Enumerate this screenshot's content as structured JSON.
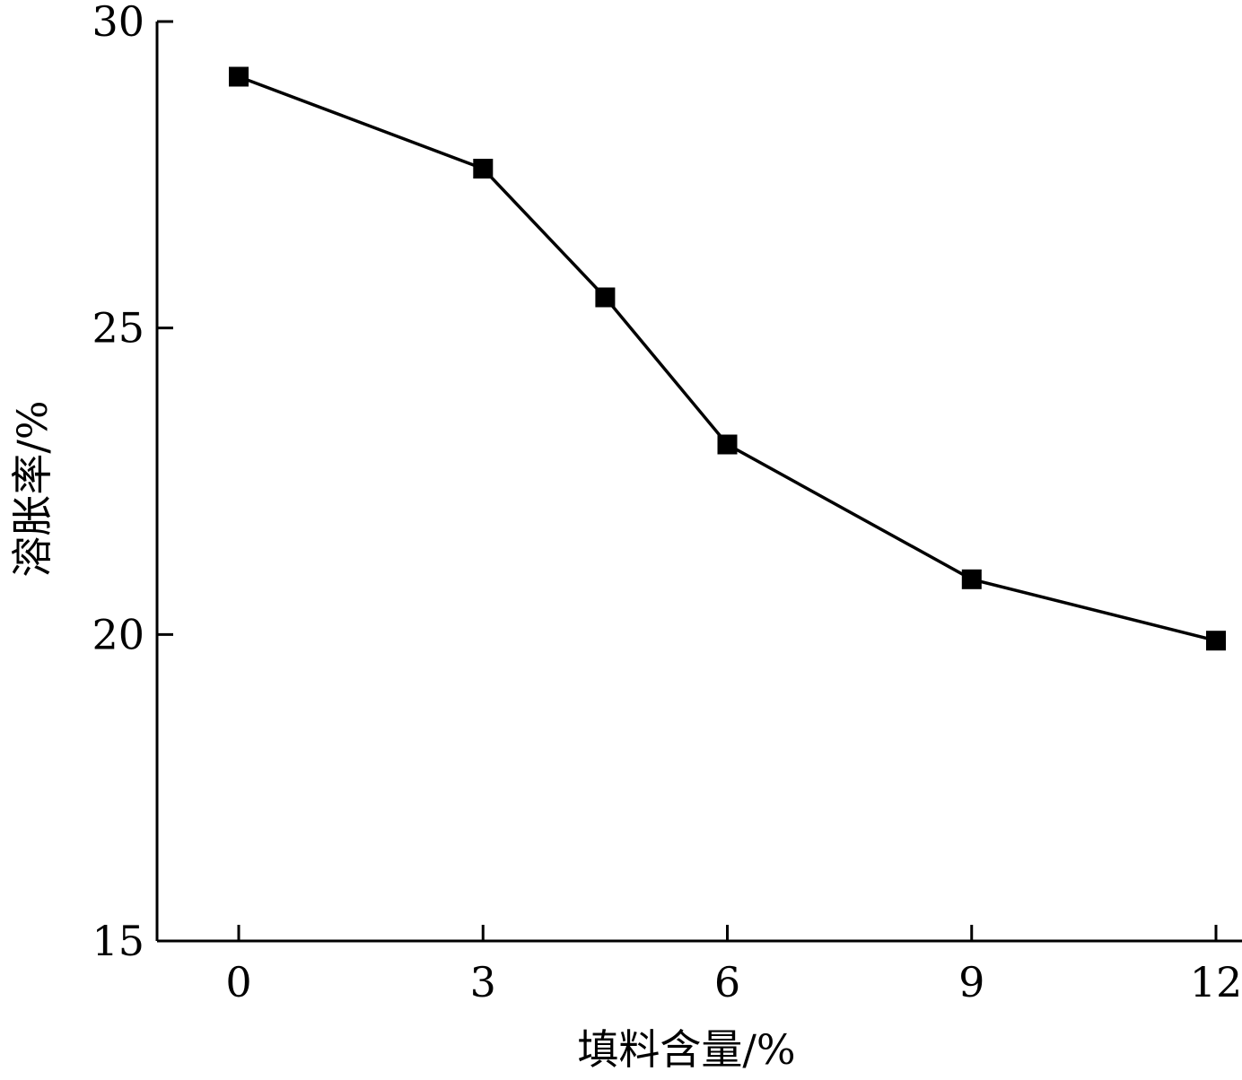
{
  "chart_data": {
    "type": "line",
    "title": "",
    "xlabel": "填料含量/%",
    "ylabel": "溶胀率/%",
    "xlim": [
      -1,
      12
    ],
    "ylim": [
      15,
      30
    ],
    "xticks": [
      0,
      3,
      6,
      9,
      12
    ],
    "yticks": [
      15,
      20,
      25,
      30
    ],
    "xtick_labels": [
      "0",
      "3",
      "6",
      "9",
      "12"
    ],
    "ytick_labels": [
      "15",
      "20",
      "25",
      "30"
    ],
    "grid": false,
    "legend": "none",
    "series": [
      {
        "marker": "square",
        "color": "#000000",
        "x": [
          0,
          3,
          4.5,
          6,
          9,
          12
        ],
        "y": [
          29.1,
          27.6,
          25.5,
          23.1,
          20.9,
          19.9
        ]
      }
    ]
  }
}
